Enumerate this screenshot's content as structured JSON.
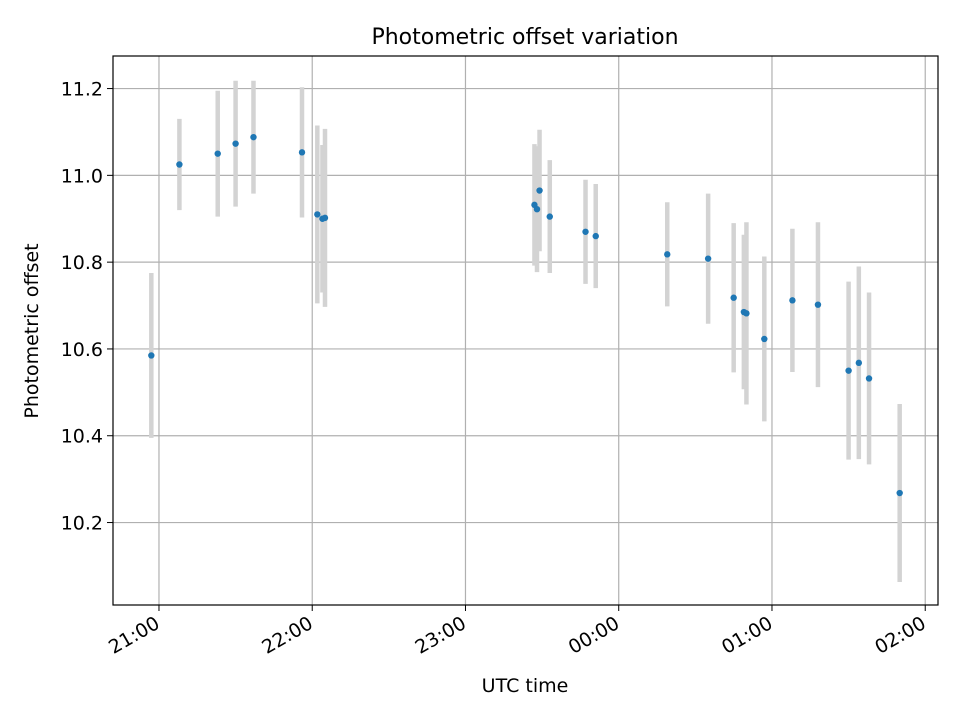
{
  "chart_data": {
    "type": "scatter",
    "title": "Photometric offset variation",
    "xlabel": "UTC time",
    "ylabel": "Photometric offset",
    "x_axis": {
      "kind": "time",
      "range": [
        "20:42",
        "02:05"
      ],
      "ticks": [
        "21:00",
        "22:00",
        "23:00",
        "00:00",
        "01:00",
        "02:00"
      ]
    },
    "y_axis": {
      "range": [
        10.01,
        11.275
      ],
      "ticks": [
        10.2,
        10.4,
        10.6,
        10.8,
        11.0,
        11.2
      ]
    },
    "grid": true,
    "colors": {
      "points": "#1f77b4",
      "errorbars": "#d3d3d3",
      "grid": "#b0b0b0"
    },
    "points": [
      {
        "t": "20:57",
        "y": 10.585,
        "err": 0.19
      },
      {
        "t": "21:08",
        "y": 11.025,
        "err": 0.105
      },
      {
        "t": "21:23",
        "y": 11.05,
        "err": 0.145
      },
      {
        "t": "21:30",
        "y": 11.073,
        "err": 0.145
      },
      {
        "t": "21:37",
        "y": 11.088,
        "err": 0.13
      },
      {
        "t": "21:56",
        "y": 11.053,
        "err": 0.15
      },
      {
        "t": "22:02",
        "y": 10.91,
        "err": 0.205
      },
      {
        "t": "22:04",
        "y": 10.9,
        "err": 0.17
      },
      {
        "t": "22:05",
        "y": 10.902,
        "err": 0.205
      },
      {
        "t": "23:27",
        "y": 10.932,
        "err": 0.14
      },
      {
        "t": "23:28",
        "y": 10.922,
        "err": 0.145
      },
      {
        "t": "23:29",
        "y": 10.965,
        "err": 0.14
      },
      {
        "t": "23:33",
        "y": 10.905,
        "err": 0.13
      },
      {
        "t": "23:47",
        "y": 10.87,
        "err": 0.12
      },
      {
        "t": "23:51",
        "y": 10.86,
        "err": 0.12
      },
      {
        "t": "00:19",
        "y": 10.818,
        "err": 0.12
      },
      {
        "t": "00:35",
        "y": 10.808,
        "err": 0.15
      },
      {
        "t": "00:45",
        "y": 10.718,
        "err": 0.172
      },
      {
        "t": "00:49",
        "y": 10.685,
        "err": 0.178
      },
      {
        "t": "00:50",
        "y": 10.682,
        "err": 0.21
      },
      {
        "t": "00:57",
        "y": 10.623,
        "err": 0.19
      },
      {
        "t": "01:08",
        "y": 10.712,
        "err": 0.165
      },
      {
        "t": "01:18",
        "y": 10.702,
        "err": 0.19
      },
      {
        "t": "01:30",
        "y": 10.55,
        "err": 0.205
      },
      {
        "t": "01:34",
        "y": 10.568,
        "err": 0.222
      },
      {
        "t": "01:38",
        "y": 10.532,
        "err": 0.198
      },
      {
        "t": "01:50",
        "y": 10.268,
        "err": 0.205
      }
    ]
  }
}
